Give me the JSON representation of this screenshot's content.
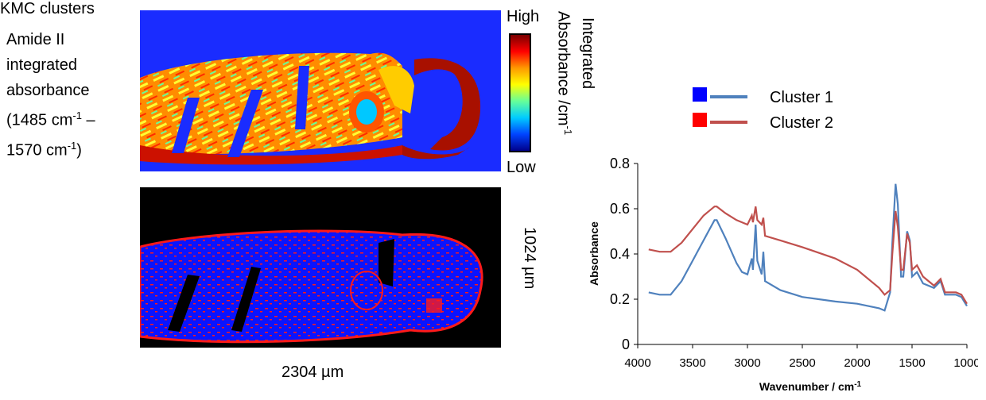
{
  "panel_labels": {
    "amide_line1": "Amide II",
    "amide_line2": "integrated",
    "amide_line3": "absorbance",
    "amide_line4a": "(1485 cm",
    "amide_line4_sup": "-1",
    "amide_line4b": " –",
    "amide_line5a": "1570 cm",
    "amide_line5_sup": "-1",
    "amide_line5b": ")",
    "kmc": "KMC clusters"
  },
  "colorbar": {
    "high": "High",
    "low": "Low",
    "title_line1": "Integrated",
    "title_line2a": "Absorbance /cm",
    "title_line2_sup": "-1"
  },
  "dimensions": {
    "height": "1024 µm",
    "width": "2304 µm"
  },
  "colors": {
    "map_background": "#1a2cff",
    "cluster_map_background": "#000000",
    "cluster1_swatch": "#0000ff",
    "cluster2_swatch": "#ff0000",
    "cluster1_line": "#4f81bd",
    "cluster2_line": "#c0504d"
  },
  "chart_data": {
    "type": "line",
    "xlabel": "Wavenumber / cm",
    "xlabel_sup": "-1",
    "ylabel": "Absorbance",
    "xlim": [
      4000,
      1000
    ],
    "ylim": [
      0,
      0.8
    ],
    "x_ticks": [
      4000,
      3500,
      3000,
      2500,
      2000,
      1500,
      1000
    ],
    "y_ticks": [
      0,
      0.2,
      0.4,
      0.6,
      0.8
    ],
    "series": [
      {
        "name": "Cluster 1",
        "points": [
          [
            3900,
            0.23
          ],
          [
            3800,
            0.22
          ],
          [
            3700,
            0.22
          ],
          [
            3600,
            0.28
          ],
          [
            3500,
            0.37
          ],
          [
            3400,
            0.46
          ],
          [
            3300,
            0.55
          ],
          [
            3280,
            0.55
          ],
          [
            3200,
            0.47
          ],
          [
            3100,
            0.36
          ],
          [
            3050,
            0.32
          ],
          [
            3000,
            0.31
          ],
          [
            2960,
            0.38
          ],
          [
            2950,
            0.33
          ],
          [
            2925,
            0.53
          ],
          [
            2910,
            0.37
          ],
          [
            2870,
            0.31
          ],
          [
            2855,
            0.41
          ],
          [
            2840,
            0.28
          ],
          [
            2700,
            0.24
          ],
          [
            2500,
            0.21
          ],
          [
            2200,
            0.19
          ],
          [
            2000,
            0.18
          ],
          [
            1800,
            0.16
          ],
          [
            1750,
            0.15
          ],
          [
            1700,
            0.23
          ],
          [
            1680,
            0.45
          ],
          [
            1650,
            0.71
          ],
          [
            1630,
            0.62
          ],
          [
            1600,
            0.3
          ],
          [
            1580,
            0.3
          ],
          [
            1545,
            0.5
          ],
          [
            1520,
            0.46
          ],
          [
            1500,
            0.3
          ],
          [
            1455,
            0.32
          ],
          [
            1400,
            0.27
          ],
          [
            1300,
            0.25
          ],
          [
            1240,
            0.28
          ],
          [
            1200,
            0.22
          ],
          [
            1100,
            0.22
          ],
          [
            1050,
            0.21
          ],
          [
            1000,
            0.17
          ]
        ]
      },
      {
        "name": "Cluster 2",
        "points": [
          [
            3900,
            0.42
          ],
          [
            3800,
            0.41
          ],
          [
            3700,
            0.41
          ],
          [
            3600,
            0.45
          ],
          [
            3500,
            0.51
          ],
          [
            3400,
            0.57
          ],
          [
            3300,
            0.61
          ],
          [
            3280,
            0.61
          ],
          [
            3200,
            0.58
          ],
          [
            3100,
            0.55
          ],
          [
            3000,
            0.53
          ],
          [
            2960,
            0.57
          ],
          [
            2950,
            0.54
          ],
          [
            2925,
            0.61
          ],
          [
            2910,
            0.55
          ],
          [
            2870,
            0.53
          ],
          [
            2855,
            0.56
          ],
          [
            2840,
            0.48
          ],
          [
            2700,
            0.46
          ],
          [
            2500,
            0.43
          ],
          [
            2200,
            0.38
          ],
          [
            2000,
            0.33
          ],
          [
            1800,
            0.25
          ],
          [
            1750,
            0.22
          ],
          [
            1700,
            0.24
          ],
          [
            1680,
            0.4
          ],
          [
            1650,
            0.59
          ],
          [
            1630,
            0.52
          ],
          [
            1600,
            0.33
          ],
          [
            1580,
            0.33
          ],
          [
            1545,
            0.49
          ],
          [
            1520,
            0.45
          ],
          [
            1500,
            0.33
          ],
          [
            1455,
            0.35
          ],
          [
            1400,
            0.3
          ],
          [
            1300,
            0.26
          ],
          [
            1240,
            0.29
          ],
          [
            1200,
            0.23
          ],
          [
            1100,
            0.23
          ],
          [
            1050,
            0.22
          ],
          [
            1000,
            0.18
          ]
        ]
      }
    ]
  }
}
